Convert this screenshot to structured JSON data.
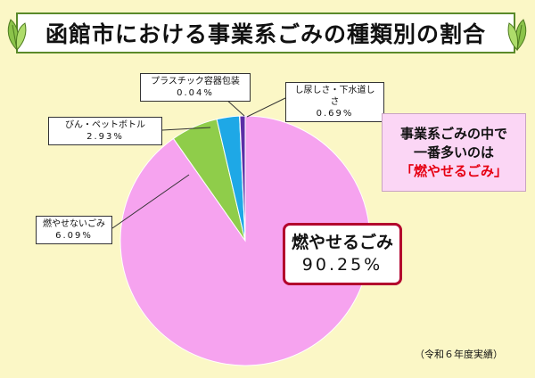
{
  "title": "函館市における事業系ごみの種類別の割合",
  "chart_data": {
    "type": "pie",
    "slices": [
      {
        "label": "燃やせるごみ",
        "value": 90.25,
        "display": "90.25%",
        "color": "#f6a3ef"
      },
      {
        "label": "燃やせないごみ",
        "value": 6.09,
        "display": "6.09%",
        "color": "#8fcd4a"
      },
      {
        "label": "びん・ペットボトル",
        "value": 2.93,
        "display": "2.93%",
        "color": "#1ea8e6"
      },
      {
        "label": "プラスチック容器包装",
        "value": 0.04,
        "display": "0.04%",
        "color": "#2f9a3a"
      },
      {
        "label": "し尿しさ・下水道しさ",
        "value": 0.69,
        "display": "0.69%",
        "color": "#5b2ea6"
      }
    ]
  },
  "callouts": {
    "plastic": {
      "label": "プラスチック容器包装",
      "value": "0.04%"
    },
    "shinyo": {
      "label": "し尿しさ・下水道しさ",
      "value": "0.69%"
    },
    "bin": {
      "label": "びん・ペットボトル",
      "value": "2.93%"
    },
    "moyasenai": {
      "label": "燃やせないごみ",
      "value": "6.09%"
    },
    "moyaseru": {
      "label": "燃やせるごみ",
      "value": "90.25%"
    }
  },
  "highlight": {
    "line1": "事業系ごみの中で",
    "line2": "一番多いのは",
    "line3": "「燃やせるごみ」"
  },
  "footnote": "（令和６年度実績）",
  "colors": {
    "background": "#fbf7c6",
    "title_border": "#5a8a2a",
    "highlight_red": "#e60012",
    "main_label_border": "#b3002d"
  }
}
